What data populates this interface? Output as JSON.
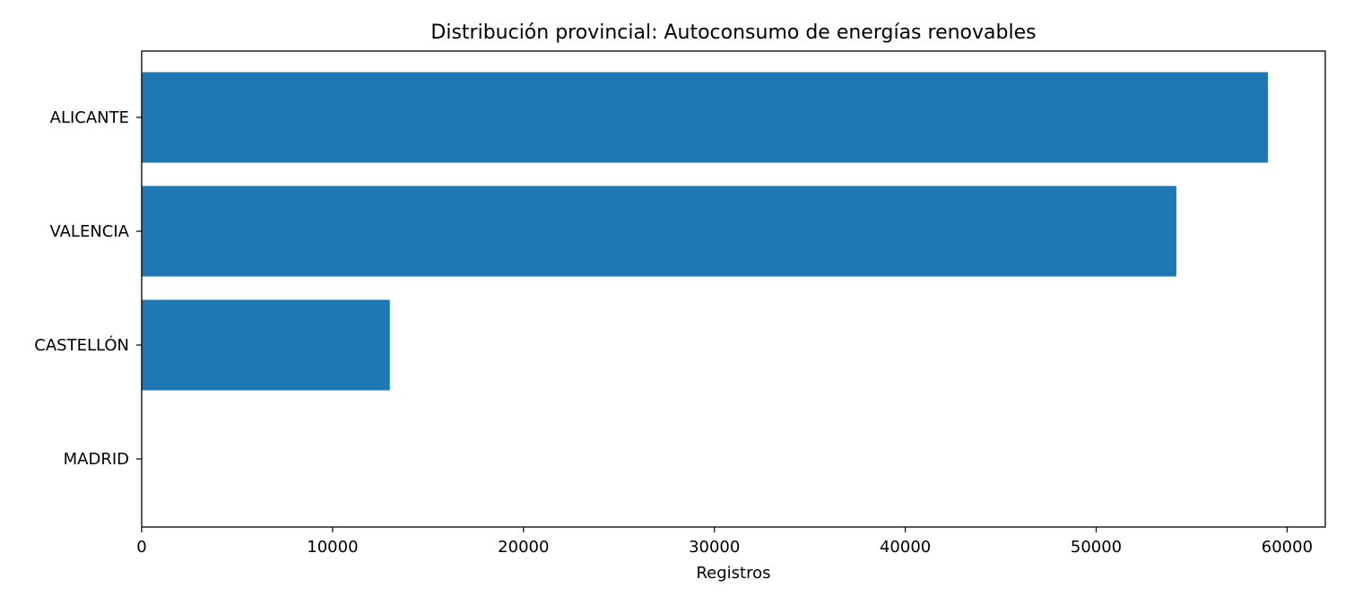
{
  "chart_data": {
    "type": "bar",
    "orientation": "horizontal",
    "title": "Distribución provincial: Autoconsumo de energías renovables",
    "xlabel": "Registros",
    "ylabel": "",
    "categories": [
      "ALICANTE",
      "VALENCIA",
      "CASTELLÓN",
      "MADRID"
    ],
    "values": [
      59000,
      54200,
      13000,
      1
    ],
    "xlim": [
      0,
      62000
    ],
    "xticks": [
      0,
      10000,
      20000,
      30000,
      40000,
      50000,
      60000
    ],
    "xtick_labels": [
      "0",
      "10000",
      "20000",
      "30000",
      "40000",
      "50000",
      "60000"
    ],
    "bar_color": "#1f77b4",
    "grid": false,
    "legend": "none"
  }
}
